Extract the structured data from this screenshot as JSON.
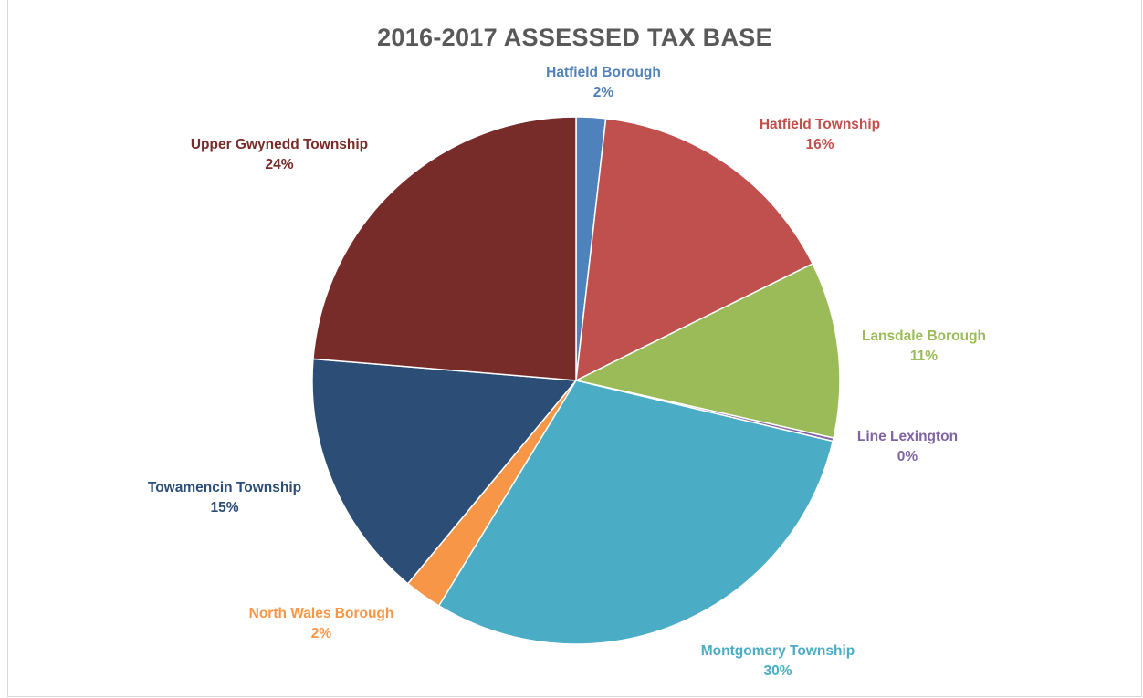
{
  "chart_data": {
    "type": "pie",
    "title": "2016-2017 ASSESSED TAX BASE",
    "slices": [
      {
        "label": "Hatfield Borough",
        "percent_label": "2%",
        "value": 1.8,
        "color": "#4f81bd",
        "label_color": "#4f81bd"
      },
      {
        "label": "Hatfield Township",
        "percent_label": "16%",
        "value": 15.9,
        "color": "#c0504d",
        "label_color": "#c0504d"
      },
      {
        "label": "Lansdale Borough",
        "percent_label": "11%",
        "value": 10.8,
        "color": "#9bbb59",
        "label_color": "#9bbb59"
      },
      {
        "label": "Line Lexington",
        "percent_label": "0%",
        "value": 0.2,
        "color": "#8064a2",
        "label_color": "#8064a2"
      },
      {
        "label": "Montgomery Township",
        "percent_label": "30%",
        "value": 30.0,
        "color": "#4bacc6",
        "label_color": "#4bacc6"
      },
      {
        "label": "North Wales Borough",
        "percent_label": "2%",
        "value": 2.3,
        "color": "#f79646",
        "label_color": "#f79646"
      },
      {
        "label": "Towamencin Township",
        "percent_label": "15%",
        "value": 15.3,
        "color": "#2c4d75",
        "label_color": "#2c4d75"
      },
      {
        "label": "Upper Gwynedd Township",
        "percent_label": "24%",
        "value": 23.7,
        "color": "#772c2a",
        "label_color": "#772c2a"
      }
    ]
  }
}
